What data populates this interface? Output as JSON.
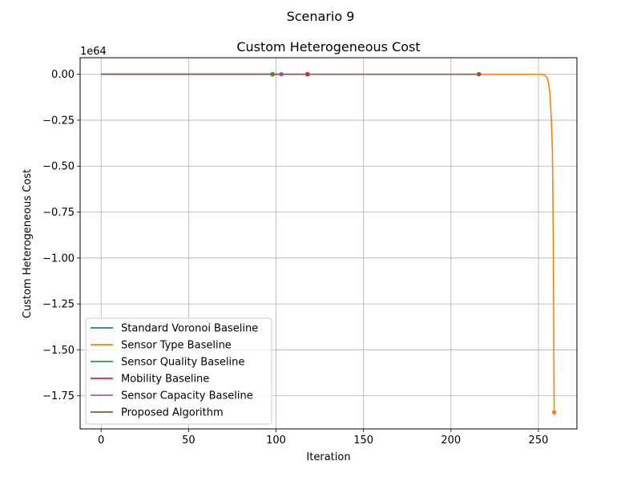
{
  "figure_title": "Scenario 9",
  "chart_data": {
    "type": "line",
    "title": "Custom Heterogeneous Cost",
    "xlabel": "Iteration",
    "ylabel": "Custom Heterogeneous Cost",
    "offset_label": "1e64",
    "xlim": [
      -12,
      272
    ],
    "ylim": [
      -1.93,
      0.09
    ],
    "xticks": [
      0,
      50,
      100,
      150,
      200,
      250
    ],
    "xtick_labels": [
      "0",
      "50",
      "100",
      "150",
      "200",
      "250"
    ],
    "yticks": [
      0.0,
      -0.25,
      -0.5,
      -0.75,
      -1.0,
      -1.25,
      -1.5,
      -1.75
    ],
    "ytick_labels": [
      "0.00",
      "−0.25",
      "−0.50",
      "−0.75",
      "−1.00",
      "−1.25",
      "−1.50",
      "−1.75"
    ],
    "grid": true,
    "legend_position": "lower-left",
    "series": [
      {
        "name": "Standard Voronoi Baseline",
        "color": "#1f77b4",
        "x": [
          0,
          98
        ],
        "y": [
          0,
          0
        ],
        "end_marker": true
      },
      {
        "name": "Sensor Type Baseline",
        "color": "#ff7f0e",
        "x": [
          0,
          240,
          250,
          252,
          253,
          254,
          255,
          255.5,
          256,
          256.5,
          257,
          257.5,
          258,
          258.5,
          259
        ],
        "y": [
          0,
          0,
          0,
          -0.001,
          -0.003,
          -0.008,
          -0.02,
          -0.035,
          -0.06,
          -0.1,
          -0.17,
          -0.28,
          -0.42,
          -0.9,
          -1.84
        ],
        "end_marker": true
      },
      {
        "name": "Sensor Quality Baseline",
        "color": "#2ca02c",
        "x": [
          0,
          98
        ],
        "y": [
          0,
          0
        ],
        "end_marker": true
      },
      {
        "name": "Mobility Baseline",
        "color": "#d62728",
        "x": [
          0,
          118
        ],
        "y": [
          0,
          0
        ],
        "end_marker": true
      },
      {
        "name": "Sensor Capacity Baseline",
        "color": "#9467bd",
        "x": [
          0,
          103
        ],
        "y": [
          0,
          0
        ],
        "end_marker": true
      },
      {
        "name": "Proposed Algorithm",
        "color": "#8c564b",
        "x": [
          0,
          216
        ],
        "y": [
          0,
          0
        ],
        "end_marker": true
      }
    ]
  }
}
